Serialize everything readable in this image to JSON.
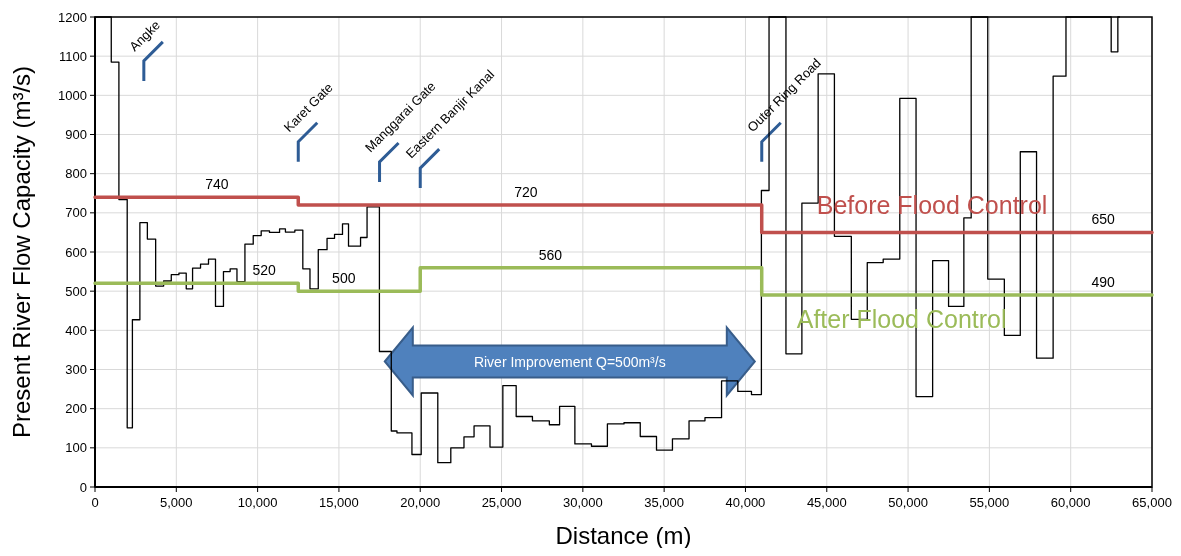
{
  "chart_data": {
    "type": "step",
    "xlabel": "Distance (m)",
    "ylabel": "Present River Flow Capacity (m³/s)",
    "xlim": [
      0,
      65000
    ],
    "ylim": [
      0,
      1200
    ],
    "xticks": [
      0,
      {
        "value": 5000,
        "label": "5,000"
      },
      {
        "value": 10000,
        "label": "10,000"
      },
      {
        "value": 15000,
        "label": "15,000"
      },
      {
        "value": 20000,
        "label": "20,000"
      },
      {
        "value": 25000,
        "label": "25,000"
      },
      {
        "value": 30000,
        "label": "30,000"
      },
      {
        "value": 35000,
        "label": "35,000"
      },
      {
        "value": 40000,
        "label": "40,000"
      },
      {
        "value": 45000,
        "label": "45,000"
      },
      {
        "value": 50000,
        "label": "50,000"
      },
      {
        "value": 55000,
        "label": "55,000"
      },
      {
        "value": 60000,
        "label": "60,000"
      },
      {
        "value": 65000,
        "label": "65,000"
      }
    ],
    "yticks": [
      0,
      100,
      200,
      300,
      400,
      500,
      600,
      700,
      800,
      900,
      1000,
      1100,
      1200
    ],
    "grid": true,
    "series": [
      {
        "color": "#000000",
        "x": [
          0,
          1000,
          1470,
          1980,
          2300,
          2760,
          3220,
          3730,
          4220,
          4690,
          5160,
          5610,
          6000,
          6490,
          6980,
          7410,
          7900,
          8310,
          8730,
          9220,
          9730,
          10220,
          10730,
          11350,
          11710,
          12290,
          12780,
          13220,
          13730,
          14270,
          14730,
          15220,
          15590,
          16330,
          16730,
          17490,
          18220,
          18570,
          19490,
          20060,
          21080,
          21880,
          22690,
          23310,
          24290,
          25080,
          25900,
          26900,
          27940,
          28570,
          29510,
          30530,
          31510,
          32530,
          33530,
          34530,
          35510,
          36530,
          37510,
          38530,
          39530,
          40370,
          40980,
          41450,
          42490,
          43470,
          44470,
          45470,
          46510,
          47490,
          48470,
          49490,
          50490,
          51510,
          52490,
          53430,
          53880,
          54900,
          55920,
          56900,
          57900,
          58920,
          59710,
          62490,
          62900,
          63000
        ],
        "values": [
          1200,
          1085,
          734,
          151,
          427,
          675,
          633,
          513,
          526,
          542,
          546,
          506,
          559,
          569,
          582,
          461,
          550,
          557,
          524,
          620,
          642,
          654,
          650,
          659,
          651,
          656,
          557,
          506,
          606,
          635,
          645,
          672,
          615,
          637,
          715,
          346,
          143,
          138,
          83,
          240,
          62,
          100,
          128,
          156,
          102,
          259,
          180,
          169,
          159,
          206,
          110,
          104,
          161,
          164,
          129,
          94,
          123,
          169,
          177,
          271,
          244,
          236,
          757,
          1200,
          340,
          725,
          1055,
          640,
          428,
          573,
          582,
          992,
          231,
          578,
          461,
          687,
          1200,
          531,
          387,
          856,
          329,
          1049,
          1200,
          1111,
          1200,
          1200
        ]
      },
      {
        "name": "Before Flood Control",
        "color": "#c0504d",
        "x": [
          0,
          7500,
          12500,
          26500,
          41000,
          62000,
          65000
        ],
        "values": [
          740,
          740,
          720,
          720,
          650,
          650,
          650
        ],
        "value_labels": [
          null,
          "740",
          null,
          "720",
          null,
          "650",
          null
        ]
      },
      {
        "name": "After Flood Control",
        "color": "#9bbb59",
        "x": [
          0,
          10400,
          12500,
          15300,
          20000,
          28000,
          41000,
          62000,
          65000
        ],
        "values": [
          520,
          520,
          500,
          500,
          560,
          560,
          490,
          490,
          490
        ],
        "value_labels": [
          null,
          "520",
          null,
          "500",
          null,
          "560",
          null,
          "490",
          null
        ]
      }
    ],
    "annotations": [
      "Angke",
      "Karet Gate",
      "Manggarai Gate",
      "Eastern Banjir Kanal",
      "Outer Ring Road",
      "River Improvement  Q=500m³/s"
    ]
  }
}
